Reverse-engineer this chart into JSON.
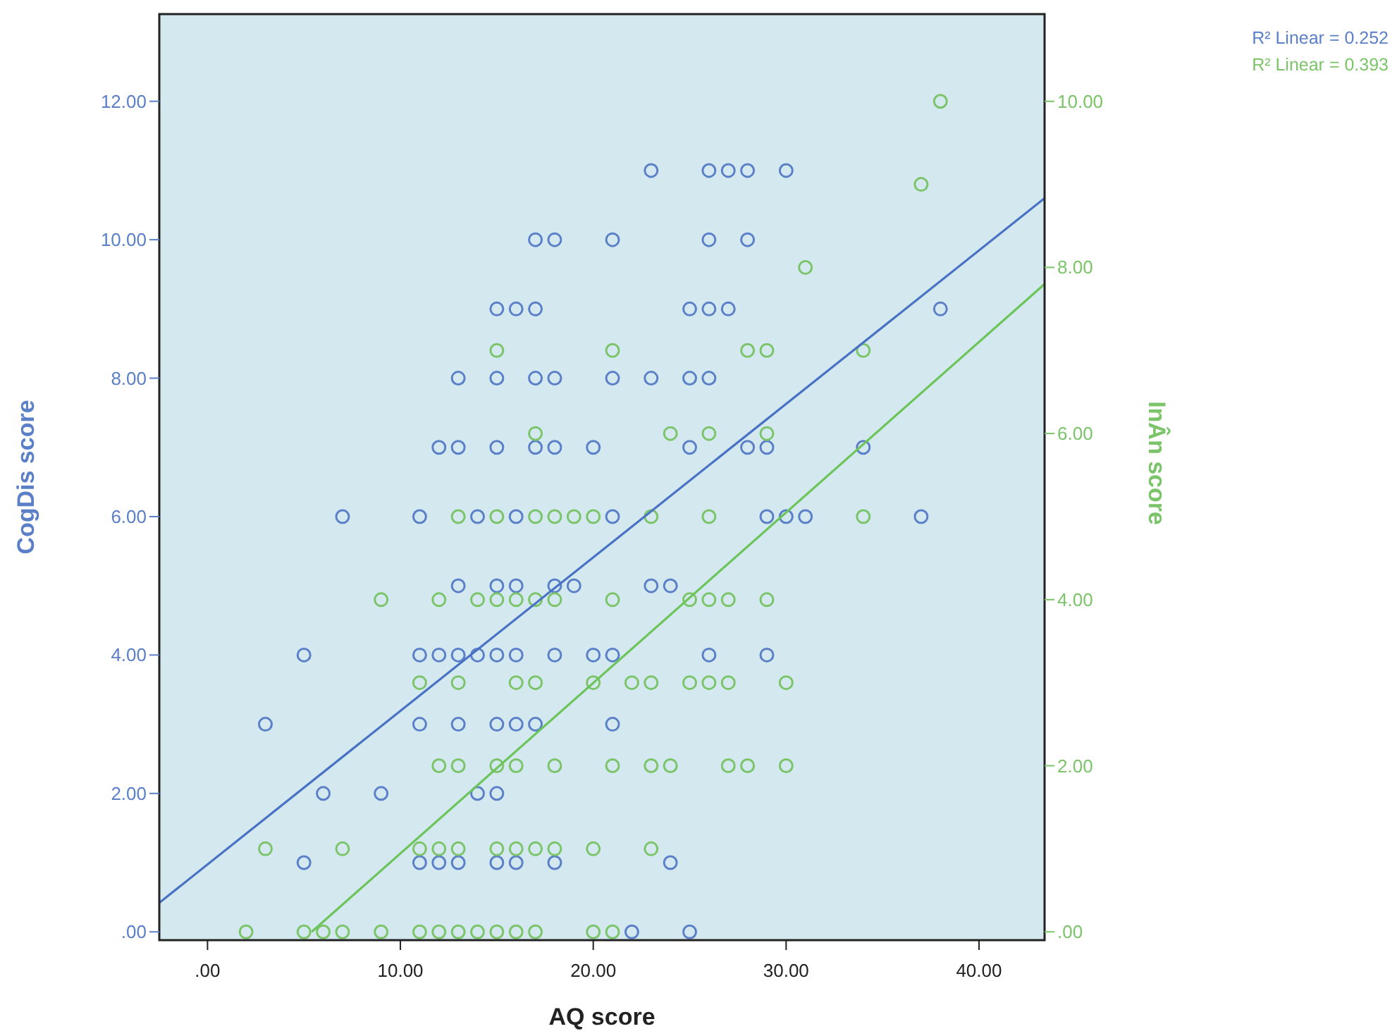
{
  "chart_data": {
    "type": "scatter",
    "xlabel": "AQ score",
    "ylabel": "CogDis score",
    "y2label": "InÂn score",
    "xlim": [
      -2.5,
      43.4
    ],
    "xticks": [
      {
        "value": 0,
        "label": ".00"
      },
      {
        "value": 10,
        "label": "10.00"
      },
      {
        "value": 20,
        "label": "20.00"
      },
      {
        "value": 30,
        "label": "30.00"
      },
      {
        "value": 40,
        "label": "40.00"
      }
    ],
    "ylim": [
      -0.12,
      13.26
    ],
    "yticks": [
      {
        "value": 0,
        "label": ".00"
      },
      {
        "value": 2,
        "label": "2.00"
      },
      {
        "value": 4,
        "label": "4.00"
      },
      {
        "value": 6,
        "label": "6.00"
      },
      {
        "value": 8,
        "label": "8.00"
      },
      {
        "value": 10,
        "label": "10.00"
      },
      {
        "value": 12,
        "label": "12.00"
      }
    ],
    "y2lim": [
      -0.1,
      11.05
    ],
    "y2ticks": [
      {
        "value": 0,
        "label": ".00"
      },
      {
        "value": 2,
        "label": "2.00"
      },
      {
        "value": 4,
        "label": "4.00"
      },
      {
        "value": 6,
        "label": "6.00"
      },
      {
        "value": 8,
        "label": "8.00"
      },
      {
        "value": 10,
        "label": "10.00"
      }
    ],
    "marker": "circle",
    "grid": false,
    "annotations": [
      "R² Linear = 0.252",
      "R² Linear = 0.393"
    ],
    "series": [
      {
        "color": "#5b80c8",
        "x": [
          23,
          26,
          27,
          28,
          30,
          17,
          18,
          21,
          26,
          28,
          15,
          16,
          17,
          25,
          26,
          27,
          38,
          13,
          15,
          17,
          18,
          21,
          23,
          25,
          26,
          12,
          13,
          15,
          17,
          18,
          20,
          25,
          28,
          29,
          34,
          7,
          11,
          14,
          16,
          21,
          29,
          30,
          31,
          37,
          13,
          15,
          16,
          18,
          19,
          23,
          24,
          5,
          11,
          12,
          13,
          14,
          15,
          16,
          18,
          20,
          21,
          26,
          29,
          3,
          11,
          13,
          15,
          16,
          17,
          21,
          6,
          9,
          14,
          15,
          5,
          11,
          12,
          13,
          15,
          16,
          18,
          24,
          22,
          25
        ],
        "values": [
          11,
          11,
          11,
          11,
          11,
          10,
          10,
          10,
          10,
          10,
          9,
          9,
          9,
          9,
          9,
          9,
          9,
          8,
          8,
          8,
          8,
          8,
          8,
          8,
          8,
          7,
          7,
          7,
          7,
          7,
          7,
          7,
          7,
          7,
          7,
          6,
          6,
          6,
          6,
          6,
          6,
          6,
          6,
          6,
          5,
          5,
          5,
          5,
          5,
          5,
          5,
          4,
          4,
          4,
          4,
          4,
          4,
          4,
          4,
          4,
          4,
          4,
          4,
          3,
          3,
          3,
          3,
          3,
          3,
          3,
          2,
          2,
          2,
          2,
          1,
          1,
          1,
          1,
          1,
          1,
          1,
          1,
          0,
          0
        ]
      },
      {
        "axis": "y2",
        "color": "#7cc46a",
        "x": [
          38,
          37,
          31,
          15,
          21,
          28,
          29,
          34,
          17,
          24,
          26,
          29,
          13,
          15,
          17,
          18,
          19,
          20,
          23,
          26,
          34,
          9,
          12,
          14,
          15,
          16,
          17,
          18,
          21,
          25,
          26,
          27,
          29,
          11,
          13,
          16,
          17,
          20,
          22,
          23,
          25,
          26,
          27,
          30,
          12,
          13,
          15,
          16,
          18,
          21,
          23,
          24,
          27,
          28,
          30,
          3,
          7,
          11,
          12,
          13,
          15,
          16,
          17,
          18,
          20,
          23,
          2,
          5,
          6,
          7,
          9,
          11,
          12,
          13,
          14,
          15,
          16,
          17,
          20,
          21
        ],
        "values": [
          10,
          9,
          8,
          7,
          7,
          7,
          7,
          7,
          6,
          6,
          6,
          6,
          5,
          5,
          5,
          5,
          5,
          5,
          5,
          5,
          5,
          4,
          4,
          4,
          4,
          4,
          4,
          4,
          4,
          4,
          4,
          4,
          4,
          3,
          3,
          3,
          3,
          3,
          3,
          3,
          3,
          3,
          3,
          3,
          2,
          2,
          2,
          2,
          2,
          2,
          2,
          2,
          2,
          2,
          2,
          1,
          1,
          1,
          1,
          1,
          1,
          1,
          1,
          1,
          1,
          1,
          0,
          0,
          0,
          0,
          0,
          0,
          0,
          0,
          0,
          0,
          0,
          0,
          0,
          0
        ]
      },
      {
        "type": "line",
        "marker": "none",
        "color": "#4a72c4",
        "x": [
          -2.5,
          43.4
        ],
        "values": [
          0.42,
          10.6
        ]
      },
      {
        "type": "line",
        "marker": "none",
        "axis": "y2",
        "color": "#6cc45a",
        "x": [
          5.4,
          43.4
        ],
        "values": [
          0,
          7.8
        ]
      }
    ]
  }
}
